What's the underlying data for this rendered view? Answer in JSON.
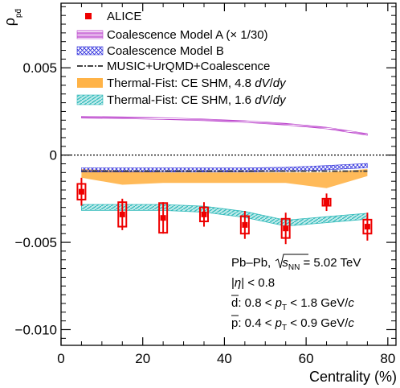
{
  "chart_data": {
    "type": "scatter",
    "xlabel": "Centrality (%)",
    "ylabel": "ρ",
    "ylabel_subscript": "pd̄",
    "xlim": [
      0,
      82
    ],
    "ylim": [
      -0.0109,
      0.0087
    ],
    "x_ticks": [
      0,
      20,
      40,
      60,
      80
    ],
    "x_tick_labels": [
      "0",
      "20",
      "40",
      "60",
      "80"
    ],
    "y_ticks": [
      0.005,
      0,
      -0.005,
      -0.01
    ],
    "y_tick_labels": [
      "0.005",
      "0",
      "−0.005",
      "−0.010"
    ],
    "reference_line": {
      "y": 0,
      "style": "dotted"
    },
    "legend": {
      "placement": "top",
      "entries": [
        {
          "label": "ALICE",
          "series": "alice",
          "marker": "square",
          "color": "#ee0000"
        },
        {
          "label": "Coalescence Model A (× 1/30)",
          "series": "coalA",
          "style": "band-hatch",
          "color": "#bb44cc"
        },
        {
          "label": "Coalescence Model B",
          "series": "coalB",
          "style": "band-crosshatch",
          "color": "#3333dd"
        },
        {
          "label": "MUSIC+UrQMD+Coalescence",
          "series": "music",
          "style": "dashdot-line",
          "color": "#444444"
        },
        {
          "label": "Thermal-Fist: CE SHM, 4.8 dV/dy",
          "label_parts": [
            "Thermal-Fist: CE SHM, 4.8 ",
            "dV",
            "/",
            "dy"
          ],
          "series": "tf48",
          "style": "band",
          "color": "#ffb347"
        },
        {
          "label": "Thermal-Fist: CE SHM, 1.6 dV/dy",
          "label_parts": [
            "Thermal-Fist: CE SHM, 1.6 ",
            "dV",
            "/",
            "dy"
          ],
          "series": "tf16",
          "style": "band-hatch",
          "color": "#33bbbb"
        }
      ]
    },
    "series": {
      "alice": {
        "x": [
          5,
          15,
          25,
          35,
          45,
          55,
          65,
          75
        ],
        "y": [
          -0.0021,
          -0.0034,
          -0.0036,
          -0.0034,
          -0.004,
          -0.0042,
          -0.0027,
          -0.0041
        ],
        "stat_err": [
          0.0008,
          0.0009,
          0.0009,
          0.0007,
          0.0008,
          0.0009,
          0.0005,
          0.0008
        ],
        "sys_err": [
          0.00045,
          0.0007,
          0.00085,
          0.0004,
          0.0005,
          0.00055,
          0.0002,
          0.0004
        ],
        "color": "#ee0000"
      },
      "coalA": {
        "x": [
          5,
          15,
          25,
          35,
          45,
          55,
          65,
          75
        ],
        "y": [
          0.00217,
          0.00214,
          0.00209,
          0.00202,
          0.00192,
          0.00177,
          0.00155,
          0.00118
        ],
        "half_width": 5e-05,
        "color": "#bb44cc"
      },
      "coalB": {
        "x": [
          5,
          15,
          25,
          35,
          45,
          55,
          65,
          75
        ],
        "y": [
          -0.00085,
          -0.00085,
          -0.00085,
          -0.00085,
          -0.00085,
          -0.00082,
          -0.00072,
          -0.0006
        ],
        "half_width": 0.00012,
        "color": "#3333dd"
      },
      "music": {
        "x": [
          5,
          75
        ],
        "y": [
          -0.00092,
          -0.00092
        ],
        "color": "#444444"
      },
      "tf48": {
        "x": [
          5,
          15,
          25,
          35,
          45,
          55,
          65,
          75
        ],
        "y_low": [
          -0.0013,
          -0.0017,
          -0.0016,
          -0.0016,
          -0.0016,
          -0.0016,
          -0.0019,
          -0.0012
        ],
        "y_high": [
          -0.0008,
          -0.0009,
          -0.001,
          -0.001,
          -0.001,
          -0.001,
          -0.001,
          -0.0008
        ],
        "color": "#ffb347"
      },
      "tf16": {
        "x": [
          5,
          15,
          25,
          35,
          45,
          55,
          65,
          75
        ],
        "y": [
          -0.003,
          -0.003,
          -0.003,
          -0.0031,
          -0.0034,
          -0.0039,
          -0.0037,
          -0.0035
        ],
        "half_width": 0.00017,
        "color": "#33bbbb"
      }
    },
    "annotations": {
      "line1_main": "Pb–Pb, ",
      "line1_sqrt": "s",
      "line1_sub": "NN",
      "line1_tail": " = 5.02 TeV",
      "line2_pre": "|",
      "line2_eta": "η",
      "line2_post": "| < 0.8",
      "line3_particle": "d",
      "line3_pre": ": 0.8 < ",
      "line3_pt": "p",
      "line3_sub": "T",
      "line3_post": " < 1.8 GeV/",
      "line3_c": "c",
      "line4_particle": "p",
      "line4_pre": ": 0.4 < ",
      "line4_pt": "p",
      "line4_sub": "T",
      "line4_post": " < 0.9 GeV/",
      "line4_c": "c"
    }
  }
}
